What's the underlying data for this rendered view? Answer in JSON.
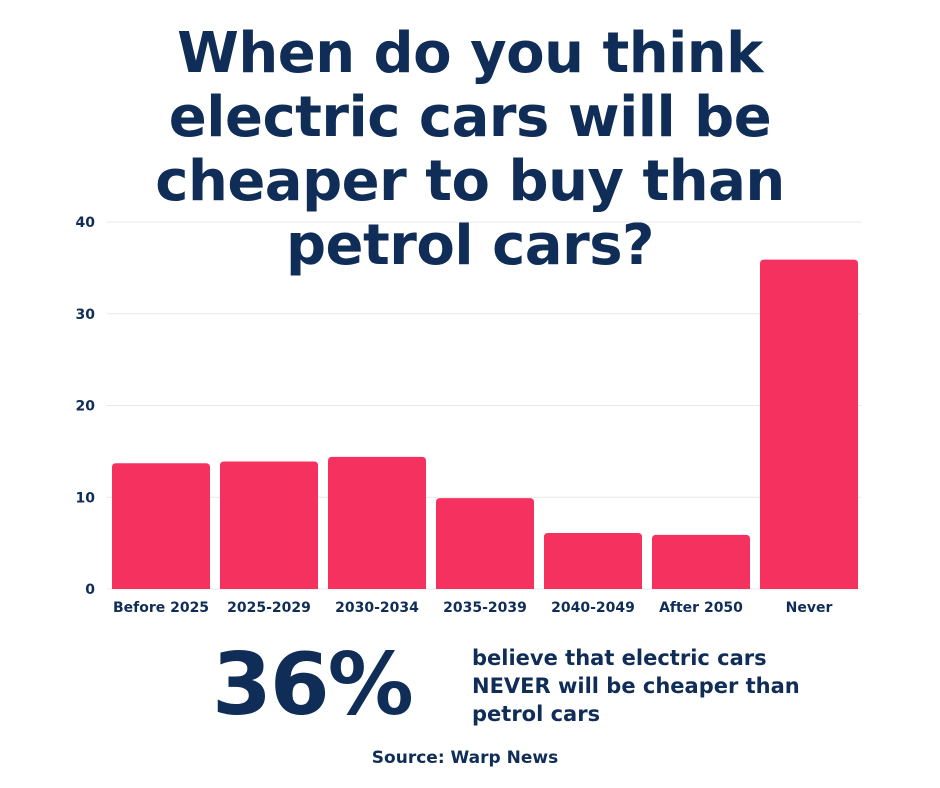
{
  "chart_data": {
    "type": "bar",
    "title": "When do you think electric cars will be cheaper to buy than petrol cars?",
    "categories": [
      "Before 2025",
      "2025-2029",
      "2030-2034",
      "2035-2039",
      "2040-2049",
      "After 2050",
      "Never"
    ],
    "values": [
      13.7,
      13.9,
      14.4,
      9.9,
      6.1,
      5.9,
      35.9
    ],
    "yticks": [
      "0",
      "10",
      "20",
      "30",
      "40"
    ],
    "ylim": [
      0,
      40
    ],
    "xlabel": "",
    "ylabel": "",
    "grid": true,
    "bar_color": "#f5325f",
    "grid_color": "#e8e8e8",
    "text_color": "#0f2d57"
  },
  "callout": {
    "number": "36%",
    "text": "believe that electric cars NEVER will be cheaper than petrol cars"
  },
  "source": "Source: Warp News"
}
